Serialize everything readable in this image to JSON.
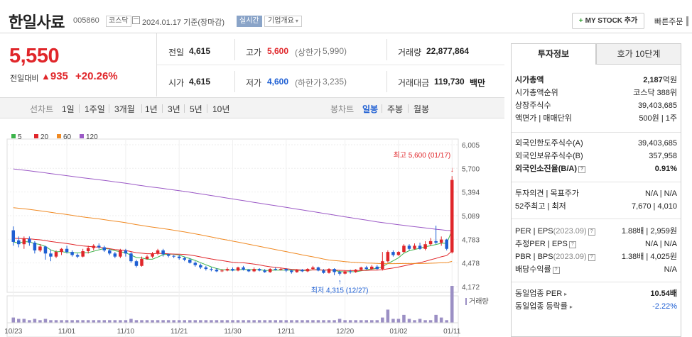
{
  "header": {
    "name": "한일사료",
    "code": "005860",
    "market": "코스닥",
    "date": "2024.01.17 기준(장마감)",
    "realtime": "실시간",
    "corp_info": "기업개요",
    "my_stock": "MY STOCK 추가",
    "quick_order": "빠른주문"
  },
  "price": {
    "current": "5,550",
    "change_label": "전일대비",
    "change": "935",
    "change_pct": "+20.26%"
  },
  "quote": {
    "prev_label": "전일",
    "prev": "4,615",
    "high_label": "고가",
    "high": "5,600",
    "upper_label": "(상한가",
    "upper": "5,990)",
    "vol_label": "거래량",
    "vol": "22,877,864",
    "open_label": "시가",
    "open": "4,615",
    "low_label": "저가",
    "low": "4,600",
    "lower_label": "(하한가",
    "lower": "3,235)",
    "amt_label": "거래대금",
    "amt": "119,730",
    "amt_unit": "백만"
  },
  "toolbar": {
    "line_chart": "선차트",
    "periods": [
      "1일",
      "1주일",
      "3개월",
      "1년",
      "3년",
      "5년",
      "10년"
    ],
    "candle_chart": "봉차트",
    "candle_daily": "일봉",
    "candle_weekly": "주봉",
    "candle_monthly": "월봉"
  },
  "chart_data": {
    "type": "candlestick",
    "legend": [
      "5",
      "20",
      "60",
      "120"
    ],
    "legend_colors": [
      "#3cb44b",
      "#e0262a",
      "#f08a24",
      "#9b59c6"
    ],
    "y_ticks": [
      "6,005",
      "5,700",
      "5,394",
      "5,089",
      "4,783",
      "4,478",
      "4,172"
    ],
    "y_range": [
      4172,
      6005
    ],
    "x_labels": [
      "10/23",
      "11/01",
      "11/10",
      "11/21",
      "11/30",
      "12/11",
      "12/20",
      "01/02",
      "01/11"
    ],
    "high_annotation": "최고 5,600 (01/17)",
    "low_annotation": "최저 4,315 (12/27)",
    "volume_label": "거래량",
    "candles": [
      [
        4900,
        4750,
        4950,
        4700
      ],
      [
        4770,
        4720,
        4820,
        4680
      ],
      [
        4720,
        4790,
        4820,
        4660
      ],
      [
        4790,
        4740,
        4820,
        4700
      ],
      [
        4740,
        4640,
        4760,
        4600
      ],
      [
        4640,
        4690,
        4720,
        4620
      ],
      [
        4690,
        4600,
        4700,
        4520
      ],
      [
        4600,
        4560,
        4650,
        4500
      ],
      [
        4560,
        4620,
        4640,
        4540
      ],
      [
        4620,
        4660,
        4670,
        4580
      ],
      [
        4660,
        4620,
        4700,
        4600
      ],
      [
        4620,
        4580,
        4640,
        4560
      ],
      [
        4580,
        4560,
        4600,
        4540
      ],
      [
        4560,
        4630,
        4660,
        4550
      ],
      [
        4630,
        4670,
        4700,
        4600
      ],
      [
        4670,
        4700,
        4720,
        4640
      ],
      [
        4700,
        4680,
        4730,
        4660
      ],
      [
        4680,
        4640,
        4700,
        4620
      ],
      [
        4640,
        4600,
        4660,
        4580
      ],
      [
        4600,
        4560,
        4620,
        4540
      ],
      [
        4560,
        4640,
        4660,
        4540
      ],
      [
        4640,
        4600,
        4660,
        4560
      ],
      [
        4600,
        4500,
        4620,
        4480
      ],
      [
        4500,
        4440,
        4520,
        4420
      ],
      [
        4440,
        4530,
        4560,
        4430
      ],
      [
        4530,
        4560,
        4580,
        4520
      ],
      [
        4560,
        4600,
        4620,
        4540
      ],
      [
        4600,
        4640,
        4660,
        4580
      ],
      [
        4640,
        4590,
        4660,
        4560
      ],
      [
        4590,
        4570,
        4600,
        4550
      ],
      [
        4570,
        4560,
        4580,
        4540
      ],
      [
        4560,
        4540,
        4580,
        4520
      ],
      [
        4540,
        4520,
        4560,
        4500
      ],
      [
        4520,
        4480,
        4540,
        4470
      ],
      [
        4480,
        4450,
        4500,
        4430
      ],
      [
        4450,
        4420,
        4470,
        4400
      ],
      [
        4420,
        4400,
        4440,
        4380
      ],
      [
        4400,
        4390,
        4420,
        4370
      ],
      [
        4390,
        4370,
        4410,
        4360
      ],
      [
        4370,
        4380,
        4400,
        4360
      ],
      [
        4380,
        4400,
        4420,
        4370
      ],
      [
        4400,
        4380,
        4420,
        4370
      ],
      [
        4380,
        4420,
        4430,
        4370
      ],
      [
        4420,
        4390,
        4440,
        4380
      ],
      [
        4390,
        4370,
        4400,
        4360
      ],
      [
        4370,
        4400,
        4420,
        4360
      ],
      [
        4400,
        4380,
        4410,
        4370
      ],
      [
        4380,
        4360,
        4400,
        4350
      ],
      [
        4360,
        4400,
        4410,
        4350
      ],
      [
        4400,
        4390,
        4420,
        4380
      ],
      [
        4390,
        4400,
        4420,
        4380
      ],
      [
        4400,
        4380,
        4410,
        4360
      ],
      [
        4380,
        4360,
        4390,
        4340
      ],
      [
        4360,
        4390,
        4400,
        4350
      ],
      [
        4390,
        4370,
        4400,
        4360
      ],
      [
        4370,
        4400,
        4410,
        4360
      ],
      [
        4400,
        4420,
        4440,
        4390
      ],
      [
        4420,
        4380,
        4430,
        4370
      ],
      [
        4380,
        4350,
        4400,
        4340
      ],
      [
        4350,
        4400,
        4410,
        4340
      ],
      [
        4400,
        4360,
        4410,
        4320
      ],
      [
        4360,
        4340,
        4380,
        4315
      ],
      [
        4340,
        4370,
        4380,
        4330
      ],
      [
        4370,
        4360,
        4390,
        4340
      ],
      [
        4360,
        4390,
        4400,
        4350
      ],
      [
        4390,
        4420,
        4430,
        4380
      ],
      [
        4420,
        4400,
        4440,
        4390
      ],
      [
        4400,
        4430,
        4450,
        4390
      ],
      [
        4430,
        4400,
        4450,
        4390
      ],
      [
        4400,
        4500,
        4620,
        4380
      ],
      [
        4500,
        4620,
        4640,
        4480
      ],
      [
        4620,
        4580,
        4640,
        4560
      ],
      [
        4580,
        4620,
        4630,
        4570
      ],
      [
        4620,
        4700,
        4720,
        4610
      ],
      [
        4700,
        4660,
        4720,
        4640
      ],
      [
        4660,
        4700,
        4730,
        4650
      ],
      [
        4700,
        4660,
        4740,
        4650
      ],
      [
        4660,
        4720,
        4760,
        4640
      ],
      [
        4720,
        4760,
        4800,
        4700
      ],
      [
        4760,
        4740,
        4960,
        4720
      ],
      [
        4740,
        4780,
        4820,
        4700
      ],
      [
        4780,
        4660,
        4790,
        4640
      ],
      [
        4615,
        5550,
        5600,
        4600
      ]
    ],
    "volumes": [
      4,
      3,
      3,
      2,
      3,
      2,
      3,
      2,
      2,
      2,
      2,
      2,
      2,
      2,
      2,
      2,
      2,
      2,
      2,
      2,
      2,
      2,
      3,
      2,
      2,
      2,
      2,
      2,
      2,
      2,
      2,
      2,
      2,
      2,
      2,
      2,
      2,
      2,
      2,
      2,
      2,
      2,
      2,
      2,
      2,
      2,
      2,
      2,
      2,
      2,
      2,
      2,
      2,
      2,
      2,
      2,
      2,
      2,
      2,
      2,
      2,
      3,
      2,
      2,
      2,
      2,
      2,
      2,
      2,
      4,
      10,
      3,
      3,
      6,
      3,
      2,
      3,
      2,
      2,
      6,
      4,
      2,
      28
    ]
  },
  "right": {
    "tab_invest": "투자정보",
    "tab_quote": "호가 10단계",
    "rows1": [
      {
        "l": "시가총액",
        "r": "2,187",
        "u": "억원"
      },
      {
        "l": "시가총액순위",
        "r": "코스닥 388위",
        "u": ""
      },
      {
        "l": "상장주식수",
        "r": "39,403,685",
        "u": ""
      },
      {
        "l": "액면가 | 매매단위",
        "r": "500원 | 1주",
        "u": ""
      }
    ],
    "rows2": [
      {
        "l": "외국인한도주식수(A)",
        "r": "39,403,685"
      },
      {
        "l": "외국인보유주식수(B)",
        "r": "357,958"
      },
      {
        "l": "외국인소진율(B/A)",
        "r": "0.91%"
      }
    ],
    "rows3": [
      {
        "l": "투자의견 | 목표주가",
        "r": "N/A | N/A"
      },
      {
        "l": "52주최고 | 최저",
        "r": "7,670 | 4,010"
      }
    ],
    "rows4": [
      {
        "l": "PER | EPS",
        "s": "(2023.09)",
        "r": "1.88배 | 2,959원"
      },
      {
        "l": "추정PER | EPS",
        "s": "",
        "r": "N/A | N/A"
      },
      {
        "l": "PBR | BPS",
        "s": "(2023.09)",
        "r": "1.38배 | 4,025원"
      },
      {
        "l": "배당수익률",
        "s": "",
        "r": "N/A"
      }
    ],
    "rows5": [
      {
        "l": "동일업종 PER",
        "r": "10.54배"
      },
      {
        "l": "동일업종 등락률",
        "r": "-2.22%"
      }
    ]
  }
}
